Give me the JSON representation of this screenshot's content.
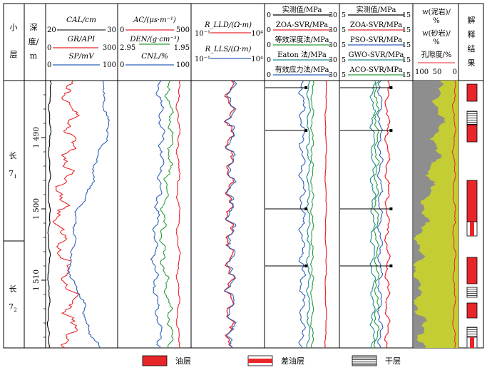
{
  "header": {
    "layer_col": [
      "小",
      "层"
    ],
    "depth_col": [
      "深",
      "度/",
      "m"
    ],
    "track1": {
      "cal": {
        "label": "CAL/cm",
        "min": "20",
        "max": "30",
        "color": "#000000"
      },
      "gr": {
        "label": "GR/API",
        "min": "0",
        "max": "300",
        "color": "#e8262a"
      },
      "sp": {
        "label": "SP/mV",
        "min": "0",
        "max": "100",
        "color": "#2f62b8"
      }
    },
    "track2": {
      "ac": {
        "label": "AC/(μs·m⁻¹)",
        "min": "0",
        "max": "500",
        "color": "#e8262a"
      },
      "den": {
        "label": "DEN/(g·cm⁻³)",
        "min": "2.95",
        "max": "1.95",
        "color": "#2a9d3a"
      },
      "cnl": {
        "label": "CNL/%",
        "min": "0",
        "max": "100",
        "color": "#2f62b8"
      }
    },
    "track3": {
      "rlld": {
        "label": "R_LLD/(Ω·m)",
        "min": "10⁻¹",
        "max": "10⁴",
        "color": "#e8262a"
      },
      "rlls": {
        "label": "R_LLS/(Ω·m)",
        "min": "10⁻¹",
        "max": "10⁴",
        "color": "#2f62b8"
      }
    },
    "track4": {
      "items": [
        "实测值/MPa",
        "ZOA-SVR/MPa",
        "等效深度法/MPa",
        "Eaton 法/MPa",
        "有效应力法/MPa"
      ],
      "min": "0",
      "max": "30",
      "colors": [
        "#000000",
        "#e8262a",
        "#2a9d3a",
        "#1e8a8a",
        "#2f62b8"
      ]
    },
    "track5": {
      "items": [
        "实测值/MPa",
        "ZOA-SVR/MPa",
        "PSO-SVR/MPa",
        "GWO-SVR/MPa",
        "ACO-SVR/MPa"
      ],
      "min": "5",
      "max": "15",
      "colors": [
        "#000000",
        "#e8262a",
        "#2f62b8",
        "#1e8a8a",
        "#2a9d3a"
      ]
    },
    "track6": {
      "lines": [
        "w(泥岩)/",
        "%",
        "w(砂岩)/",
        "%",
        "孔隙度/%"
      ],
      "scale": [
        "100",
        "50",
        "0"
      ]
    },
    "track7": [
      "解",
      "释",
      "结",
      "果"
    ]
  },
  "layers": [
    {
      "name": "长",
      "sub": "7",
      "subscript": "1"
    },
    {
      "name": "长",
      "sub": "7",
      "subscript": "2"
    }
  ],
  "depth_ticks": [
    {
      "label": "1 490",
      "depth": 1490
    },
    {
      "label": "1 500",
      "depth": 1500
    },
    {
      "label": "1 510",
      "depth": 1510
    }
  ],
  "legend": [
    {
      "label": "油层",
      "pattern": "solid-red"
    },
    {
      "label": "差油层",
      "pattern": "red-white-stripe"
    },
    {
      "label": "干层",
      "pattern": "horizontal-lines"
    }
  ],
  "colors": {
    "red": "#e8262a",
    "blue": "#2f62b8",
    "green": "#2a9d3a",
    "teal": "#1e8a8a",
    "sand": "#c4cd33",
    "mud": "#8e8e8e"
  },
  "chart_data": {
    "type": "line",
    "depth_range": [
      1482.0,
      1519.5
    ],
    "layer_boundary_depth": 1504.5,
    "measured_pressure": [
      {
        "depth": 1483,
        "value_0_30": 16.5,
        "value_5_15": 12.0
      },
      {
        "depth": 1489,
        "value_0_30": 16.5,
        "value_5_15": 12.0
      },
      {
        "depth": 1500,
        "value_0_30": 16.5,
        "value_5_15": 12.0
      },
      {
        "depth": 1508,
        "value_0_30": 16.5,
        "value_5_15": 12.0
      }
    ],
    "interpretation": [
      {
        "top": 1482.5,
        "bottom": 1484.9,
        "type": "oil"
      },
      {
        "top": 1486.3,
        "bottom": 1488.2,
        "type": "dry"
      },
      {
        "top": 1488.2,
        "bottom": 1490.6,
        "type": "oil"
      },
      {
        "top": 1496.0,
        "bottom": 1501.8,
        "type": "oil"
      },
      {
        "top": 1501.8,
        "bottom": 1503.8,
        "type": "poor-oil"
      },
      {
        "top": 1506.8,
        "bottom": 1510.5,
        "type": "oil"
      },
      {
        "top": 1511.0,
        "bottom": 1512.4,
        "type": "dry"
      },
      {
        "top": 1513.2,
        "bottom": 1515.3,
        "type": "oil"
      },
      {
        "top": 1516.6,
        "bottom": 1518.0,
        "type": "dry"
      },
      {
        "top": 1518.0,
        "bottom": 1519.5,
        "type": "poor-oil"
      }
    ]
  }
}
